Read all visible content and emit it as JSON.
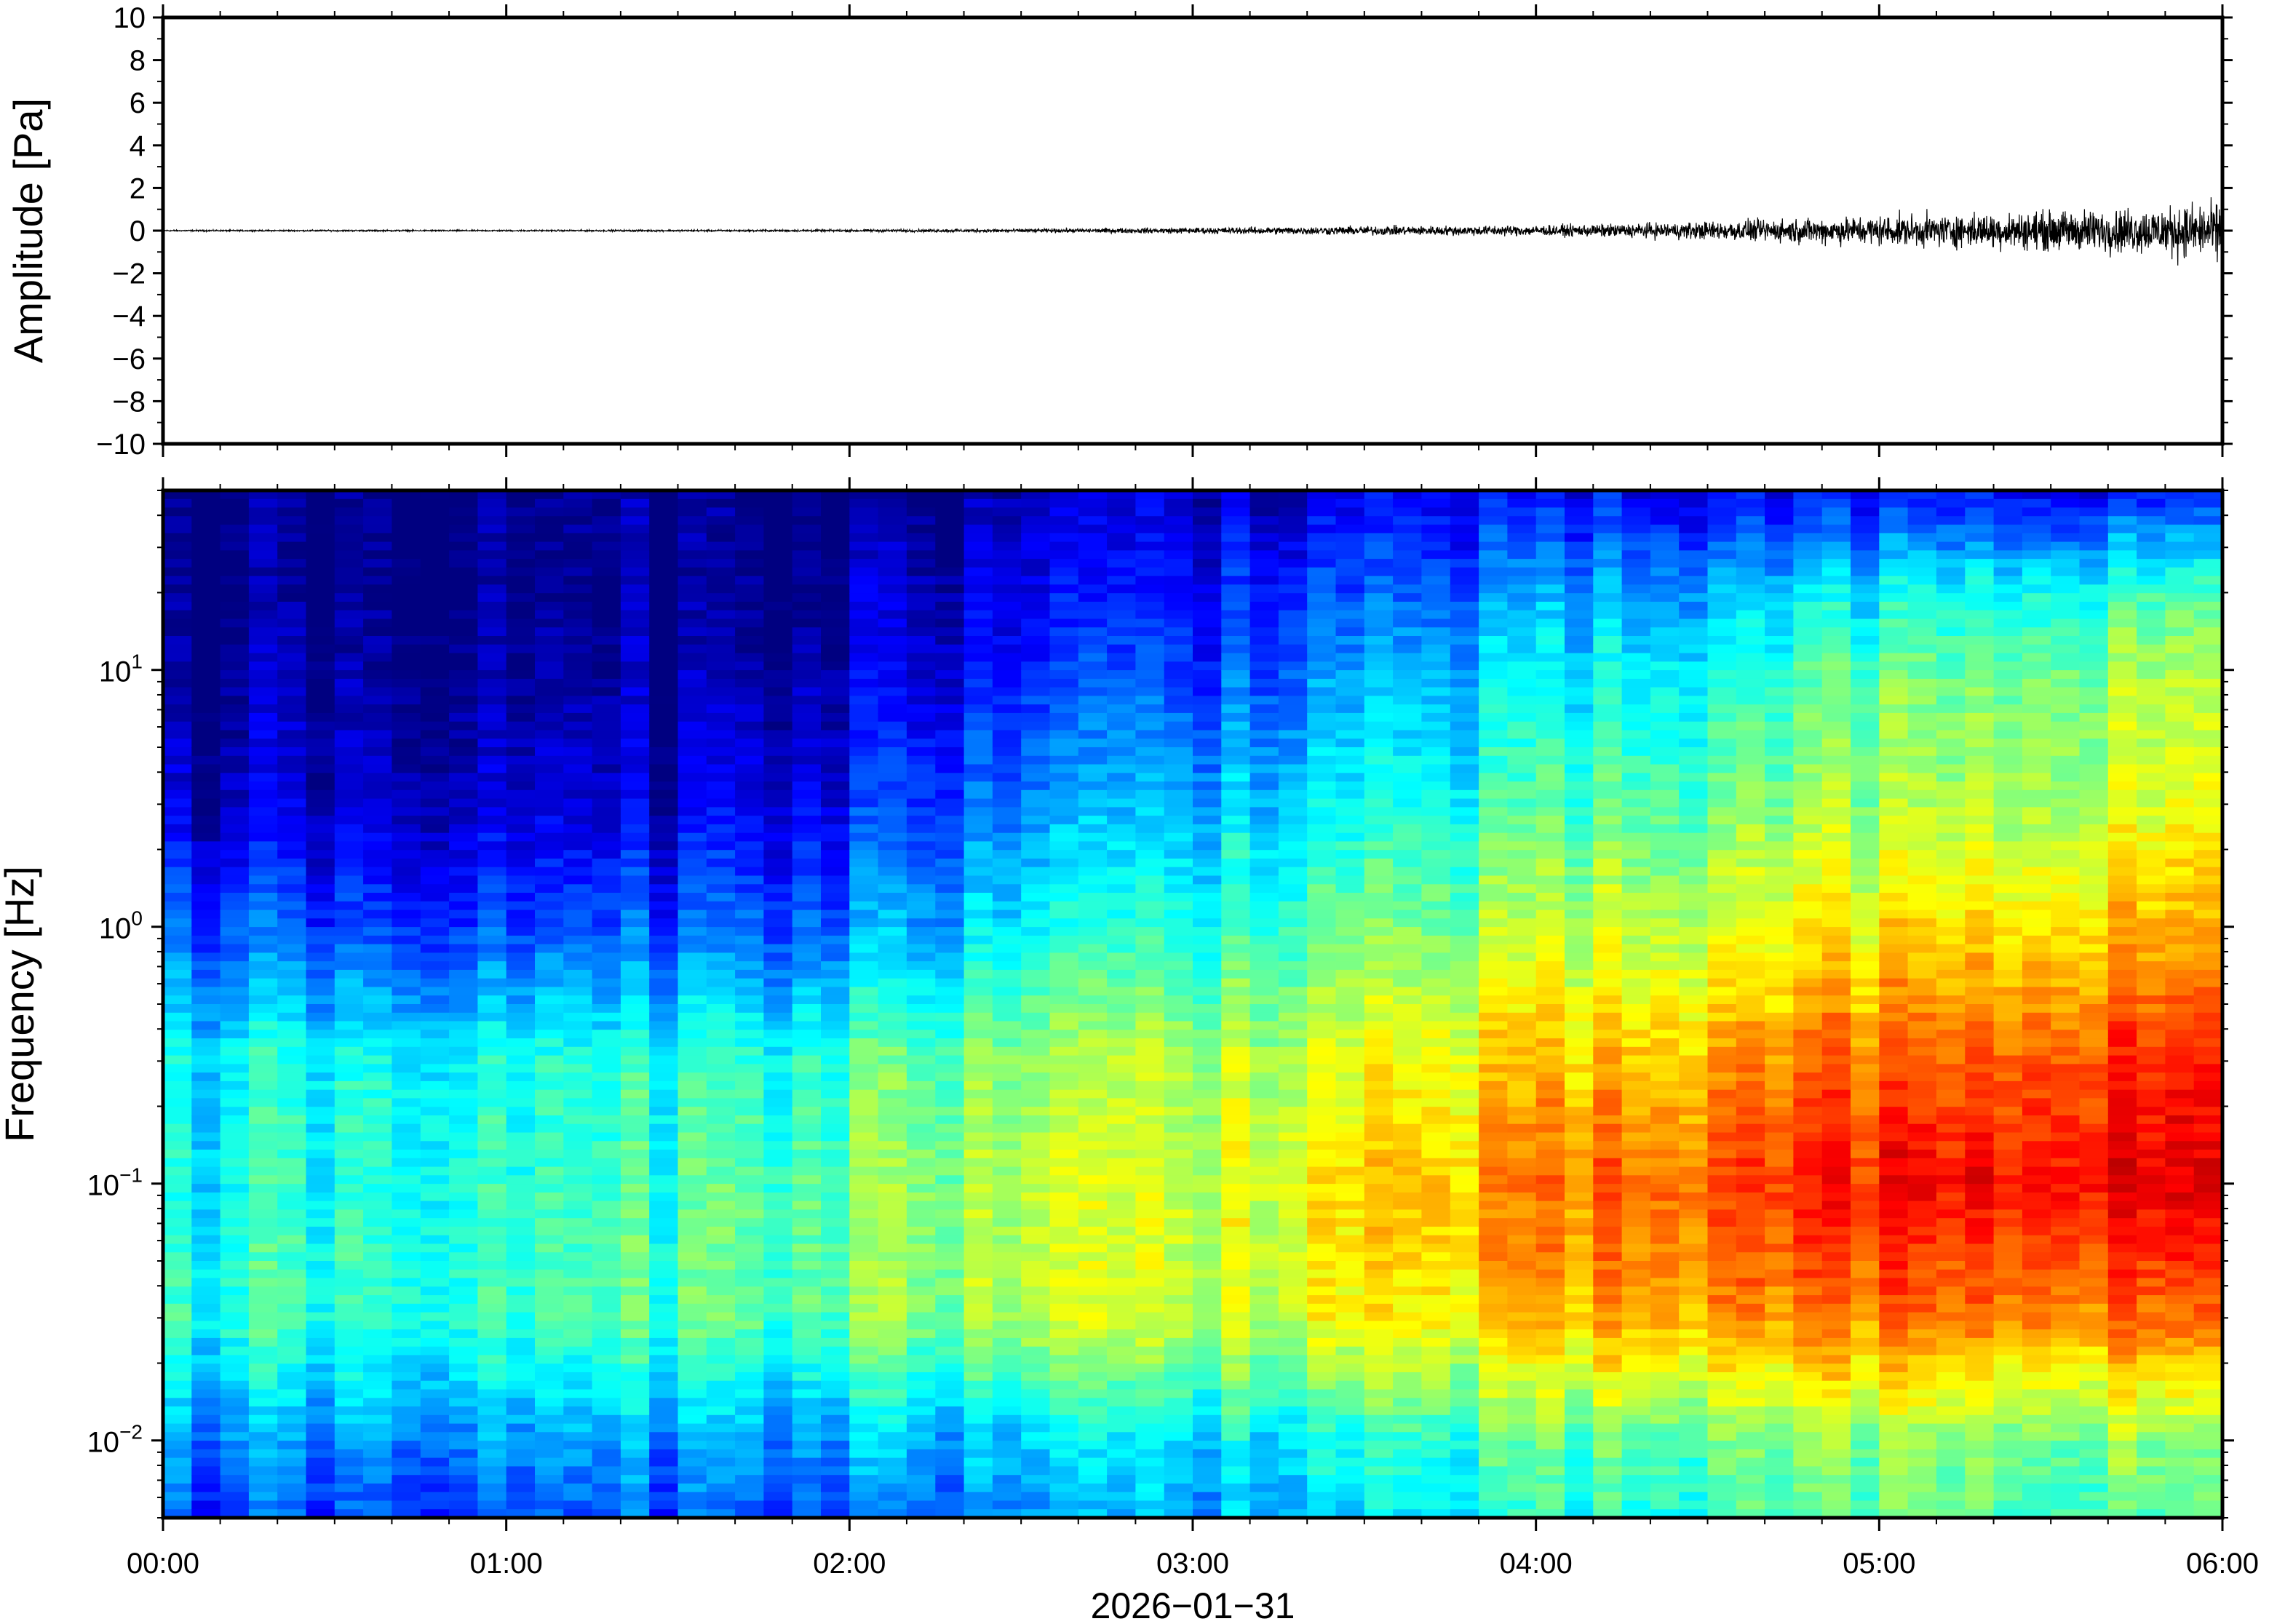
{
  "chart_data": [
    {
      "type": "line",
      "ylabel": "Amplitude [Pa]",
      "xlabel": "",
      "ylim": [
        -10,
        10
      ],
      "yticks": [
        10,
        8,
        6,
        4,
        2,
        0,
        -2,
        -4,
        -6,
        -8,
        -10
      ],
      "ytick_labels": [
        "10",
        "8",
        "6",
        "4",
        "2",
        "0",
        "−2",
        "−4",
        "−6",
        "−8",
        "−10"
      ],
      "x_range": [
        "00:00",
        "06:00"
      ],
      "series": [
        {
          "x": [
            "00:00",
            "00:30",
            "01:00",
            "01:30",
            "02:00",
            "02:30",
            "03:00",
            "03:30",
            "04:00",
            "04:15",
            "04:30",
            "04:45",
            "05:00",
            "05:15",
            "05:30",
            "05:45",
            "06:00"
          ],
          "envelope_max": [
            0.05,
            0.05,
            0.05,
            0.06,
            0.08,
            0.12,
            0.2,
            0.3,
            0.35,
            0.45,
            0.6,
            0.8,
            1.0,
            1.1,
            1.3,
            1.5,
            1.8
          ],
          "envelope_min": [
            -0.05,
            -0.05,
            -0.05,
            -0.06,
            -0.08,
            -0.12,
            -0.2,
            -0.3,
            -0.35,
            -0.45,
            -0.6,
            -0.8,
            -1.0,
            -1.1,
            -1.3,
            -1.5,
            -2.1
          ]
        }
      ],
      "grid": false
    },
    {
      "type": "heatmap",
      "ylabel": "Frequency [Hz]",
      "xlabel": "2026−01−31",
      "y_scale": "log",
      "ylim": [
        0.005,
        50
      ],
      "yticks": [
        10,
        1,
        0.1,
        0.01
      ],
      "ytick_labels": [
        {
          "base": "10",
          "exp": "1"
        },
        {
          "base": "10",
          "exp": "0"
        },
        {
          "base": "10",
          "exp": "−1"
        },
        {
          "base": "10",
          "exp": "−2"
        }
      ],
      "x_tick_labels": [
        "00:00",
        "01:00",
        "02:00",
        "03:00",
        "04:00",
        "05:00",
        "06:00"
      ],
      "x": [
        "00:00",
        "00:30",
        "01:00",
        "01:30",
        "02:00",
        "02:30",
        "03:00",
        "03:30",
        "04:00",
        "04:30",
        "05:00",
        "05:30",
        "06:00"
      ],
      "y": [
        50,
        20,
        10,
        3,
        1,
        0.3,
        0.1,
        0.03,
        0.01,
        0.005
      ],
      "z": [
        [
          0.0,
          0.0,
          0.0,
          0.0,
          0.0,
          0.05,
          0.08,
          0.1,
          0.1,
          0.1,
          0.12,
          0.12,
          0.14
        ],
        [
          0.0,
          0.0,
          0.0,
          0.0,
          0.05,
          0.1,
          0.15,
          0.2,
          0.25,
          0.3,
          0.35,
          0.4,
          0.45
        ],
        [
          0.02,
          0.02,
          0.02,
          0.02,
          0.08,
          0.15,
          0.2,
          0.28,
          0.33,
          0.38,
          0.45,
          0.5,
          0.55
        ],
        [
          0.08,
          0.06,
          0.06,
          0.08,
          0.15,
          0.25,
          0.32,
          0.38,
          0.42,
          0.48,
          0.52,
          0.55,
          0.6
        ],
        [
          0.22,
          0.18,
          0.18,
          0.2,
          0.26,
          0.36,
          0.42,
          0.48,
          0.52,
          0.58,
          0.62,
          0.66,
          0.7
        ],
        [
          0.38,
          0.38,
          0.38,
          0.4,
          0.45,
          0.52,
          0.55,
          0.6,
          0.65,
          0.7,
          0.76,
          0.8,
          0.85
        ],
        [
          0.38,
          0.4,
          0.4,
          0.44,
          0.5,
          0.55,
          0.58,
          0.66,
          0.72,
          0.8,
          0.85,
          0.88,
          0.9
        ],
        [
          0.42,
          0.42,
          0.42,
          0.45,
          0.5,
          0.55,
          0.58,
          0.62,
          0.66,
          0.72,
          0.74,
          0.76,
          0.76
        ],
        [
          0.28,
          0.26,
          0.26,
          0.28,
          0.3,
          0.32,
          0.36,
          0.4,
          0.44,
          0.48,
          0.5,
          0.5,
          0.5
        ],
        [
          0.2,
          0.18,
          0.18,
          0.2,
          0.22,
          0.26,
          0.3,
          0.34,
          0.38,
          0.42,
          0.44,
          0.45,
          0.45
        ]
      ],
      "colormap": "jet",
      "colorbar": false
    }
  ]
}
